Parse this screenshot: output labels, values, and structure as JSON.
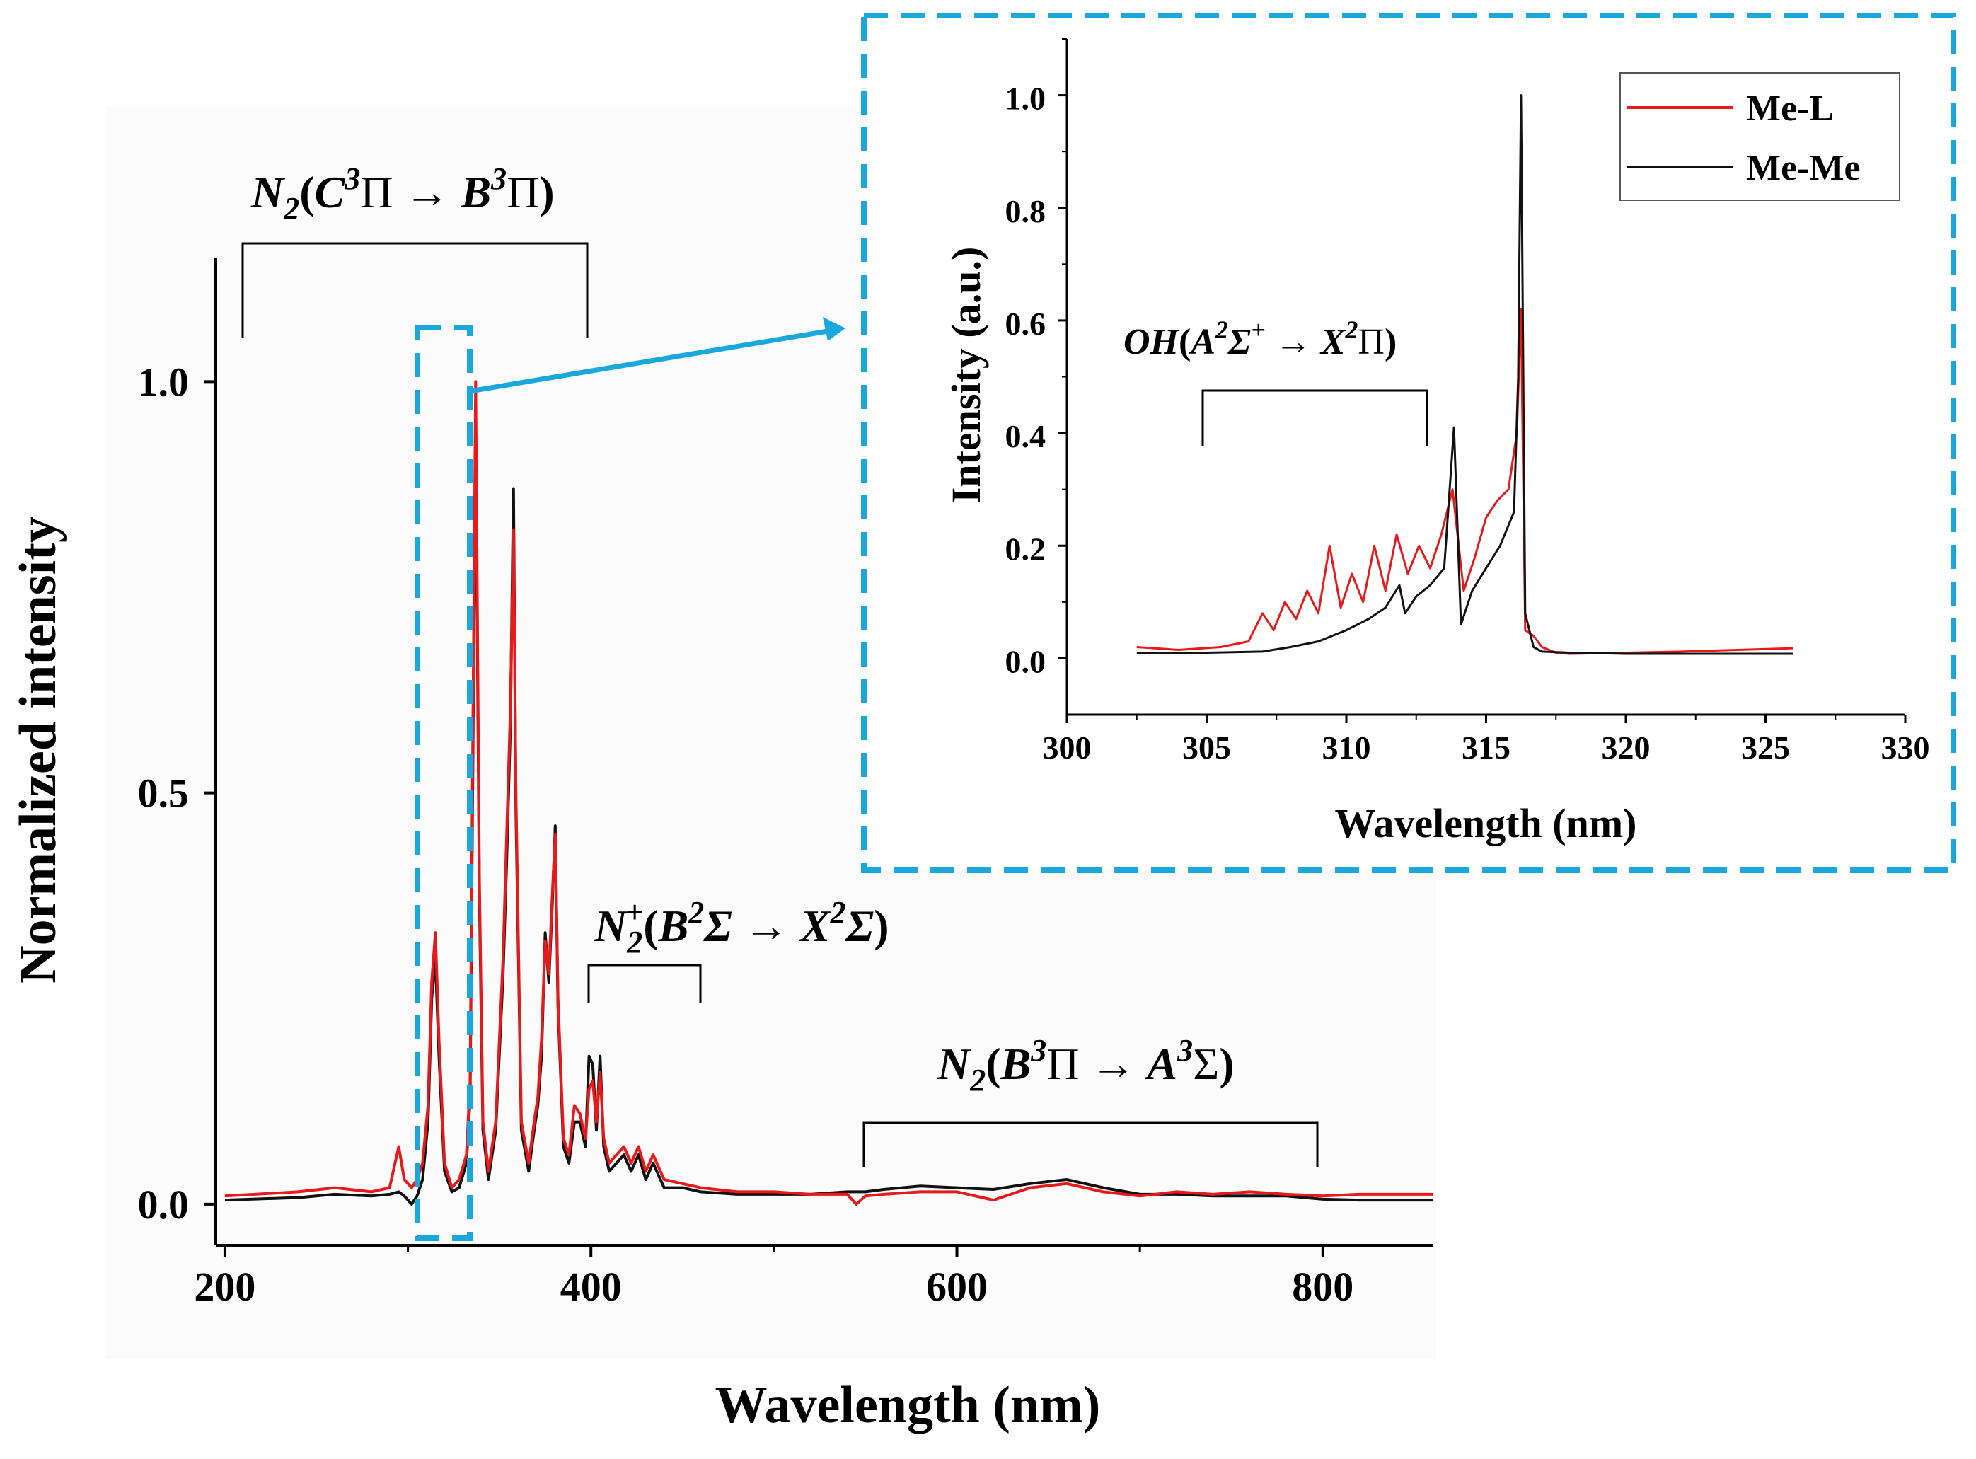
{
  "colors": {
    "me_l": "#e8191a",
    "me_me": "#111111",
    "highlight": "#1aa8dc",
    "axis": "#000000"
  },
  "chart_data": [
    {
      "id": "main",
      "type": "line",
      "title": "",
      "xlabel": "Wavelength (nm)",
      "ylabel": "Normalized  intensity",
      "xlim": [
        195,
        860
      ],
      "ylim": [
        -0.05,
        1.15
      ],
      "xticks": [
        200,
        400,
        600,
        800
      ],
      "xtick_labels": [
        "200",
        "400",
        "600",
        "800"
      ],
      "yticks": [
        0.0,
        0.5,
        1.0
      ],
      "ytick_labels": [
        "0.0",
        "0.5",
        "1.0"
      ],
      "series": [
        {
          "name": "Me-L",
          "x": [
            200,
            240,
            260,
            280,
            290,
            295,
            298,
            302,
            305,
            308,
            311,
            313,
            315,
            317,
            320,
            324,
            328,
            332,
            334,
            337,
            339,
            341,
            344,
            348,
            352,
            354,
            356,
            357.7,
            359,
            362,
            366,
            369,
            371,
            373,
            375,
            377,
            379,
            380.5,
            382,
            385,
            388,
            391,
            394,
            397,
            399,
            401,
            403,
            405,
            407,
            410,
            414,
            418,
            422,
            426,
            430,
            434,
            440,
            450,
            460,
            480,
            500,
            520,
            540,
            545,
            550,
            560,
            580,
            600,
            620,
            640,
            660,
            680,
            700,
            720,
            740,
            760,
            780,
            800,
            820,
            840,
            860
          ],
          "y": [
            0.01,
            0.015,
            0.02,
            0.015,
            0.02,
            0.07,
            0.03,
            0.02,
            0.03,
            0.05,
            0.12,
            0.27,
            0.33,
            0.2,
            0.05,
            0.02,
            0.03,
            0.06,
            0.15,
            1.0,
            0.4,
            0.1,
            0.04,
            0.1,
            0.3,
            0.45,
            0.6,
            0.82,
            0.5,
            0.1,
            0.05,
            0.1,
            0.13,
            0.2,
            0.32,
            0.28,
            0.38,
            0.45,
            0.25,
            0.08,
            0.06,
            0.12,
            0.11,
            0.08,
            0.14,
            0.15,
            0.1,
            0.16,
            0.08,
            0.05,
            0.06,
            0.07,
            0.05,
            0.07,
            0.04,
            0.06,
            0.03,
            0.025,
            0.02,
            0.015,
            0.015,
            0.012,
            0.012,
            0.0,
            0.01,
            0.012,
            0.015,
            0.015,
            0.005,
            0.02,
            0.025,
            0.015,
            0.01,
            0.015,
            0.012,
            0.015,
            0.012,
            0.01,
            0.012,
            0.012,
            0.012
          ]
        },
        {
          "name": "Me-Me",
          "x": [
            200,
            240,
            260,
            280,
            290,
            295,
            298,
            302,
            305,
            308,
            311,
            313,
            315,
            317,
            320,
            324,
            328,
            332,
            334,
            337,
            339,
            341,
            344,
            348,
            352,
            354,
            356,
            357.7,
            359,
            362,
            366,
            369,
            371,
            373,
            375,
            377,
            379,
            380.5,
            382,
            385,
            388,
            391,
            394,
            397,
            399,
            401,
            403,
            405,
            407,
            410,
            414,
            418,
            422,
            426,
            430,
            434,
            440,
            450,
            460,
            480,
            500,
            520,
            540,
            545,
            550,
            560,
            580,
            600,
            620,
            640,
            660,
            680,
            700,
            720,
            740,
            760,
            780,
            800,
            820,
            840,
            860
          ],
          "y": [
            0.005,
            0.008,
            0.012,
            0.01,
            0.012,
            0.015,
            0.01,
            0.0,
            0.01,
            0.03,
            0.1,
            0.25,
            0.3,
            0.18,
            0.04,
            0.015,
            0.02,
            0.05,
            0.13,
            0.95,
            0.38,
            0.09,
            0.03,
            0.09,
            0.28,
            0.42,
            0.58,
            0.87,
            0.48,
            0.09,
            0.04,
            0.09,
            0.12,
            0.18,
            0.33,
            0.27,
            0.37,
            0.46,
            0.24,
            0.07,
            0.05,
            0.1,
            0.1,
            0.07,
            0.18,
            0.17,
            0.09,
            0.18,
            0.07,
            0.04,
            0.05,
            0.06,
            0.04,
            0.06,
            0.03,
            0.05,
            0.02,
            0.02,
            0.015,
            0.012,
            0.012,
            0.012,
            0.015,
            0.015,
            0.015,
            0.018,
            0.022,
            0.02,
            0.018,
            0.025,
            0.03,
            0.02,
            0.012,
            0.012,
            0.01,
            0.01,
            0.01,
            0.006,
            0.005,
            0.005,
            0.005
          ]
        }
      ]
    },
    {
      "id": "inset",
      "type": "line",
      "title": "",
      "xlabel": "Wavelength (nm)",
      "ylabel": "Intensity (a.u.)",
      "xlim": [
        300,
        330
      ],
      "ylim": [
        -0.1,
        1.1
      ],
      "xticks": [
        300,
        305,
        310,
        315,
        320,
        325,
        330
      ],
      "xtick_labels": [
        "300",
        "305",
        "310",
        "315",
        "320",
        "325",
        "330"
      ],
      "yticks": [
        0.0,
        0.2,
        0.4,
        0.6,
        0.8,
        1.0
      ],
      "ytick_labels": [
        "0.0",
        "0.2",
        "0.4",
        "0.6",
        "0.8",
        "1.0"
      ],
      "legend": {
        "position": "top-right",
        "entries": [
          "Me-L",
          "Me-Me"
        ]
      },
      "series": [
        {
          "name": "Me-L",
          "x": [
            302.5,
            304,
            305.5,
            306.5,
            307,
            307.4,
            307.8,
            308.2,
            308.6,
            309,
            309.4,
            309.8,
            310.2,
            310.6,
            311,
            311.4,
            311.8,
            312.2,
            312.6,
            313,
            313.4,
            313.8,
            314.2,
            314.6,
            315,
            315.4,
            315.8,
            316.1,
            316.25,
            316.4,
            316.7,
            317,
            317.5,
            318,
            320,
            322,
            324,
            326
          ],
          "y": [
            0.02,
            0.015,
            0.02,
            0.03,
            0.08,
            0.05,
            0.1,
            0.07,
            0.12,
            0.08,
            0.2,
            0.09,
            0.15,
            0.1,
            0.2,
            0.12,
            0.22,
            0.15,
            0.2,
            0.16,
            0.22,
            0.3,
            0.12,
            0.18,
            0.25,
            0.28,
            0.3,
            0.4,
            0.62,
            0.05,
            0.04,
            0.02,
            0.01,
            0.008,
            0.01,
            0.012,
            0.015,
            0.018
          ]
        },
        {
          "name": "Me-Me",
          "x": [
            302.5,
            305,
            307,
            308,
            309,
            310,
            310.8,
            311.4,
            311.9,
            312.1,
            312.5,
            313,
            313.5,
            313.85,
            314.1,
            314.5,
            315,
            315.5,
            316,
            316.15,
            316.25,
            316.4,
            316.7,
            317,
            318,
            320,
            322,
            324,
            326
          ],
          "y": [
            0.01,
            0.01,
            0.012,
            0.02,
            0.03,
            0.05,
            0.07,
            0.09,
            0.13,
            0.08,
            0.11,
            0.13,
            0.16,
            0.41,
            0.06,
            0.12,
            0.16,
            0.2,
            0.26,
            0.5,
            1.0,
            0.08,
            0.02,
            0.012,
            0.01,
            0.008,
            0.008,
            0.008,
            0.008
          ]
        }
      ]
    }
  ],
  "annotations": {
    "c_to_b": {
      "base": "N",
      "sub": "2",
      "lp": "(",
      "s1": "C",
      "sup1": "3",
      "t1": "Π",
      "arrow": " → ",
      "s2": "B",
      "sup2": "3",
      "t2": "Π",
      "rp": ")"
    },
    "b_to_x": {
      "base": "N",
      "sub": "2",
      "sup0": "+",
      "lp": "(",
      "s1": "B",
      "sup1": "2",
      "t1": "Σ",
      "arrow": " → ",
      "s2": "X",
      "sup2": "2",
      "t2": "Σ",
      "rp": ")"
    },
    "b_to_a": {
      "base": "N",
      "sub": "2",
      "lp": "(",
      "s1": "B",
      "sup1": "3",
      "t1": "Π",
      "arrow": " → ",
      "s2": "A",
      "sup2": "3",
      "t2": "Σ",
      "rp": ")"
    },
    "oh": {
      "base": "OH",
      "lp": "(",
      "s1": "A",
      "sup1": "2",
      "t1": "Σ",
      "sup1b": "+",
      "arrow": " → ",
      "s2": "X",
      "sup2": "2",
      "t2": "Π",
      "rp": ")"
    }
  }
}
